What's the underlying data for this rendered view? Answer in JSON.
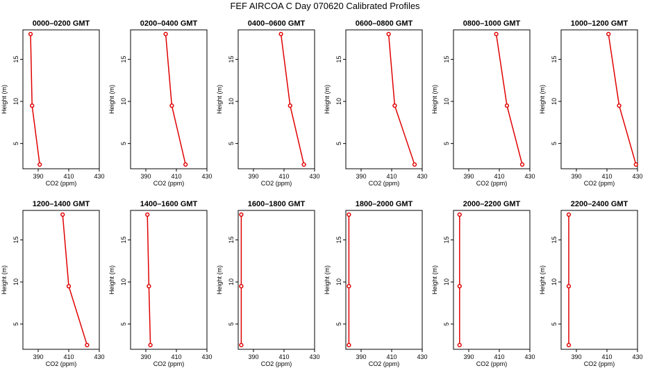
{
  "figure_title": "FEF AIRCOA C  Day 070620  Calibrated Profiles",
  "chart_data": [
    {
      "type": "line",
      "title": "0000–0200 GMT",
      "xlabel": "CO2 (ppm)",
      "ylabel": "Height (m)",
      "xlim": [
        380,
        430
      ],
      "ylim": [
        2,
        18.5
      ],
      "xticks": [
        390,
        410,
        430
      ],
      "yticks": [
        5,
        10,
        15
      ],
      "heights": [
        18,
        9.5,
        2.5
      ],
      "values": [
        385,
        386,
        391
      ]
    },
    {
      "type": "line",
      "title": "0200–0400 GMT",
      "xlabel": "CO2 (ppm)",
      "ylabel": "Height (m)",
      "xlim": [
        380,
        430
      ],
      "ylim": [
        2,
        18.5
      ],
      "xticks": [
        390,
        410,
        430
      ],
      "yticks": [
        5,
        10,
        15
      ],
      "heights": [
        18,
        9.5,
        2.5
      ],
      "values": [
        403,
        407,
        416
      ]
    },
    {
      "type": "line",
      "title": "0400–0600 GMT",
      "xlabel": "CO2 (ppm)",
      "ylabel": "Height (m)",
      "xlim": [
        380,
        430
      ],
      "ylim": [
        2,
        18.5
      ],
      "xticks": [
        390,
        410,
        430
      ],
      "yticks": [
        5,
        10,
        15
      ],
      "heights": [
        18,
        9.5,
        2.5
      ],
      "values": [
        408,
        414,
        423
      ]
    },
    {
      "type": "line",
      "title": "0600–0800 GMT",
      "xlabel": "CO2 (ppm)",
      "ylabel": "Height (m)",
      "xlim": [
        380,
        430
      ],
      "ylim": [
        2,
        18.5
      ],
      "xticks": [
        390,
        410,
        430
      ],
      "yticks": [
        5,
        10,
        15
      ],
      "heights": [
        18,
        9.5,
        2.5
      ],
      "values": [
        408,
        412,
        425
      ]
    },
    {
      "type": "line",
      "title": "0800–1000 GMT",
      "xlabel": "CO2 (ppm)",
      "ylabel": "Height (m)",
      "xlim": [
        380,
        430
      ],
      "ylim": [
        2,
        18.5
      ],
      "xticks": [
        390,
        410,
        430
      ],
      "yticks": [
        5,
        10,
        15
      ],
      "heights": [
        18,
        9.5,
        2.5
      ],
      "values": [
        408,
        415,
        425
      ]
    },
    {
      "type": "line",
      "title": "1000–1200 GMT",
      "xlabel": "CO2 (ppm)",
      "ylabel": "Height (m)",
      "xlim": [
        380,
        430
      ],
      "ylim": [
        2,
        18.5
      ],
      "xticks": [
        390,
        410,
        430
      ],
      "yticks": [
        5,
        10,
        15
      ],
      "heights": [
        18,
        9.5,
        2.5
      ],
      "values": [
        411,
        418,
        429
      ]
    },
    {
      "type": "line",
      "title": "1200–1400 GMT",
      "xlabel": "CO2 (ppm)",
      "ylabel": "Height (m)",
      "xlim": [
        380,
        430
      ],
      "ylim": [
        2,
        18.5
      ],
      "xticks": [
        390,
        410,
        430
      ],
      "yticks": [
        5,
        10,
        15
      ],
      "heights": [
        18,
        9.5,
        2.5
      ],
      "values": [
        406,
        410,
        422
      ]
    },
    {
      "type": "line",
      "title": "1400–1600 GMT",
      "xlabel": "CO2 (ppm)",
      "ylabel": "Height (m)",
      "xlim": [
        380,
        430
      ],
      "ylim": [
        2,
        18.5
      ],
      "xticks": [
        390,
        410,
        430
      ],
      "yticks": [
        5,
        10,
        15
      ],
      "heights": [
        18,
        9.5,
        2.5
      ],
      "values": [
        391,
        392,
        393
      ]
    },
    {
      "type": "line",
      "title": "1600–1800 GMT",
      "xlabel": "CO2 (ppm)",
      "ylabel": "Height (m)",
      "xlim": [
        380,
        430
      ],
      "ylim": [
        2,
        18.5
      ],
      "xticks": [
        390,
        410,
        430
      ],
      "yticks": [
        5,
        10,
        15
      ],
      "heights": [
        18,
        9.5,
        2.5
      ],
      "values": [
        382,
        382,
        382
      ]
    },
    {
      "type": "line",
      "title": "1800–2000 GMT",
      "xlabel": "CO2 (ppm)",
      "ylabel": "Height (m)",
      "xlim": [
        380,
        430
      ],
      "ylim": [
        2,
        18.5
      ],
      "xticks": [
        390,
        410,
        430
      ],
      "yticks": [
        5,
        10,
        15
      ],
      "heights": [
        18,
        9.5,
        2.5
      ],
      "values": [
        382,
        382,
        382
      ]
    },
    {
      "type": "line",
      "title": "2000–2200 GMT",
      "xlabel": "CO2 (ppm)",
      "ylabel": "Height (m)",
      "xlim": [
        380,
        430
      ],
      "ylim": [
        2,
        18.5
      ],
      "xticks": [
        390,
        410,
        430
      ],
      "yticks": [
        5,
        10,
        15
      ],
      "heights": [
        18,
        9.5,
        2.5
      ],
      "values": [
        384,
        384,
        384
      ]
    },
    {
      "type": "line",
      "title": "2200–2400 GMT",
      "xlabel": "CO2 (ppm)",
      "ylabel": "Height (m)",
      "xlim": [
        380,
        430
      ],
      "ylim": [
        2,
        18.5
      ],
      "xticks": [
        390,
        410,
        430
      ],
      "yticks": [
        5,
        10,
        15
      ],
      "heights": [
        18,
        9.5,
        2.5
      ],
      "values": [
        385,
        385,
        385
      ]
    }
  ]
}
